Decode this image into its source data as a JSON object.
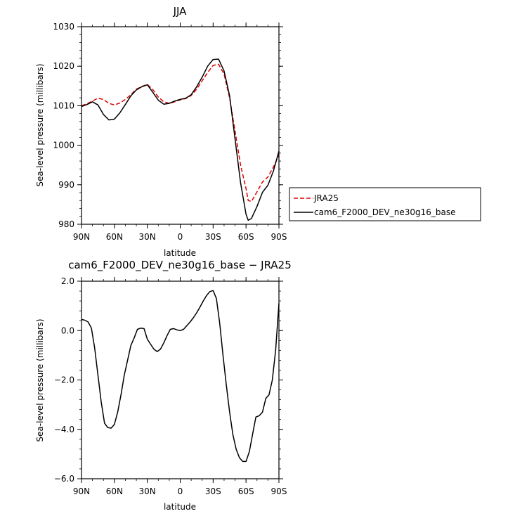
{
  "chart_data": [
    {
      "type": "line",
      "title": "JJA",
      "xlabel": "latitude",
      "ylabel": "Sea-level pressure (millibars)",
      "xlim": [
        90,
        -90
      ],
      "ylim": [
        980,
        1030
      ],
      "yticks": [
        {
          "value": 980,
          "label": "980"
        },
        {
          "value": 990,
          "label": "990"
        },
        {
          "value": 1000,
          "label": "1000"
        },
        {
          "value": 1010,
          "label": "1010"
        },
        {
          "value": 1020,
          "label": "1020"
        },
        {
          "value": 1030,
          "label": "1030"
        }
      ],
      "xticks": [
        {
          "value": 90,
          "label": "90N"
        },
        {
          "value": 60,
          "label": "60N"
        },
        {
          "value": 30,
          "label": "30N"
        },
        {
          "value": 0,
          "label": "0"
        },
        {
          "value": -30,
          "label": "30S"
        },
        {
          "value": -60,
          "label": "60S"
        },
        {
          "value": -90,
          "label": "90S"
        }
      ],
      "legend_position": "outside-right",
      "series": [
        {
          "name": "JRA25",
          "color": "#e00000",
          "dash": true,
          "x": [
            90,
            85,
            80,
            75,
            70,
            65,
            60,
            55,
            50,
            45,
            40,
            35,
            30,
            25,
            20,
            15,
            10,
            5,
            0,
            -5,
            -10,
            -15,
            -20,
            -25,
            -30,
            -35,
            -40,
            -45,
            -50,
            -55,
            -60,
            -62,
            -65,
            -70,
            -75,
            -80,
            -85,
            -90
          ],
          "y": [
            1010.0,
            1010.5,
            1011.2,
            1011.9,
            1011.6,
            1010.6,
            1010.2,
            1010.7,
            1011.6,
            1012.8,
            1014.2,
            1014.9,
            1015.4,
            1014.1,
            1012.2,
            1011.0,
            1010.6,
            1011.0,
            1011.5,
            1011.8,
            1012.6,
            1014.2,
            1016.3,
            1018.4,
            1020.2,
            1020.5,
            1018.0,
            1012.0,
            1003.5,
            995.0,
            989.0,
            986.0,
            985.8,
            988.2,
            990.7,
            992.0,
            994.5,
            997.5
          ]
        },
        {
          "name": "cam6_F2000_DEV_ne30g16_base",
          "color": "#000000",
          "dash": false,
          "x": [
            90,
            85,
            80,
            75,
            70,
            65,
            60,
            55,
            50,
            45,
            40,
            35,
            30,
            25,
            20,
            15,
            10,
            5,
            0,
            -5,
            -10,
            -15,
            -20,
            -25,
            -30,
            -35,
            -40,
            -45,
            -50,
            -55,
            -60,
            -62,
            -65,
            -70,
            -75,
            -80,
            -85,
            -90
          ],
          "y": [
            1009.8,
            1010.3,
            1011.0,
            1010.2,
            1007.8,
            1006.4,
            1006.6,
            1008.2,
            1010.3,
            1012.5,
            1014.0,
            1014.8,
            1015.3,
            1013.4,
            1011.4,
            1010.4,
            1010.6,
            1011.2,
            1011.6,
            1011.9,
            1012.8,
            1014.8,
            1017.2,
            1020.0,
            1021.7,
            1021.8,
            1018.8,
            1012.5,
            1001.5,
            990.5,
            982.5,
            981.0,
            981.5,
            984.5,
            988.1,
            989.9,
            993.5,
            998.5
          ]
        }
      ]
    },
    {
      "type": "line",
      "title": "cam6_F2000_DEV_ne30g16_base − JRA25",
      "xlabel": "latitude",
      "ylabel": "Sea-level pressure (millibars)",
      "xlim": [
        90,
        -90
      ],
      "ylim": [
        -6.0,
        2.0
      ],
      "yticks": [
        {
          "value": -6.0,
          "label": "−6.0"
        },
        {
          "value": -4.0,
          "label": "−4.0"
        },
        {
          "value": -2.0,
          "label": "−2.0"
        },
        {
          "value": 0.0,
          "label": "0.0"
        },
        {
          "value": 2.0,
          "label": "2.0"
        }
      ],
      "xticks": [
        {
          "value": 90,
          "label": "90N"
        },
        {
          "value": 60,
          "label": "60N"
        },
        {
          "value": 30,
          "label": "30N"
        },
        {
          "value": 0,
          "label": "0"
        },
        {
          "value": -30,
          "label": "30S"
        },
        {
          "value": -60,
          "label": "60S"
        },
        {
          "value": -90,
          "label": "90S"
        }
      ],
      "series": [
        {
          "color": "#000000",
          "dash": false,
          "x": [
            90,
            87,
            84,
            81,
            78,
            75,
            72,
            69,
            66,
            63,
            60,
            57,
            54,
            51,
            48,
            45,
            42,
            39,
            36,
            33,
            30,
            27,
            24,
            21,
            18,
            15,
            12,
            9,
            6,
            3,
            0,
            -3,
            -6,
            -9,
            -12,
            -15,
            -18,
            -21,
            -24,
            -27,
            -30,
            -33,
            -36,
            -39,
            -42,
            -45,
            -48,
            -51,
            -54,
            -57,
            -60,
            -63,
            -66,
            -69,
            -72,
            -75,
            -78,
            -81,
            -84,
            -87,
            -90
          ],
          "y": [
            0.45,
            0.42,
            0.35,
            0.1,
            -0.7,
            -1.8,
            -2.9,
            -3.75,
            -3.93,
            -3.95,
            -3.8,
            -3.3,
            -2.6,
            -1.8,
            -1.2,
            -0.6,
            -0.3,
            0.05,
            0.1,
            0.08,
            -0.35,
            -0.55,
            -0.75,
            -0.85,
            -0.75,
            -0.5,
            -0.2,
            0.05,
            0.08,
            0.03,
            0.0,
            0.05,
            0.2,
            0.35,
            0.52,
            0.72,
            0.95,
            1.2,
            1.42,
            1.58,
            1.62,
            1.3,
            0.3,
            -1.0,
            -2.2,
            -3.3,
            -4.2,
            -4.8,
            -5.15,
            -5.3,
            -5.3,
            -4.9,
            -4.2,
            -3.5,
            -3.45,
            -3.3,
            -2.75,
            -2.6,
            -2.0,
            -0.8,
            1.1
          ]
        }
      ]
    }
  ]
}
